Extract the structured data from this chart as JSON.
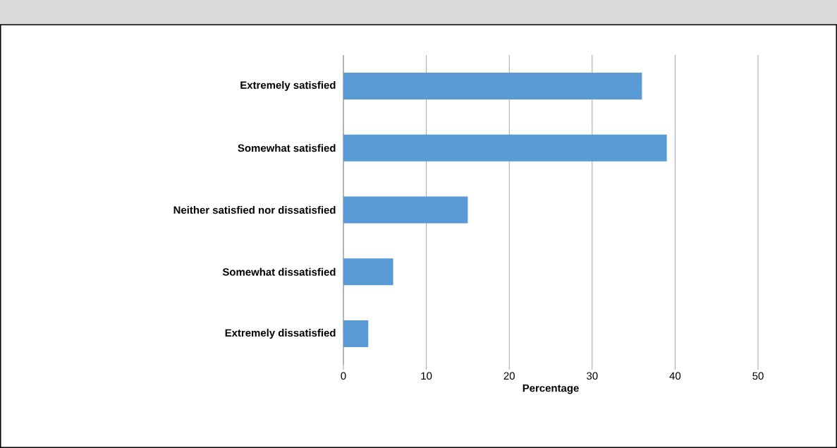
{
  "chart_data": {
    "type": "bar",
    "orientation": "horizontal",
    "xlabel": "Percentage",
    "categories": [
      "Extremely satisfied",
      "Somewhat satisfied",
      "Neither satisfied nor dissatisfied",
      "Somewhat dissatisfied",
      "Extremely dissatisfied"
    ],
    "values": [
      36,
      39,
      15,
      6,
      3
    ],
    "color": "#5b9bd5",
    "xlim": [
      0,
      50
    ],
    "xticks": [
      0,
      10,
      20,
      30,
      40,
      50
    ],
    "grid": "x"
  }
}
